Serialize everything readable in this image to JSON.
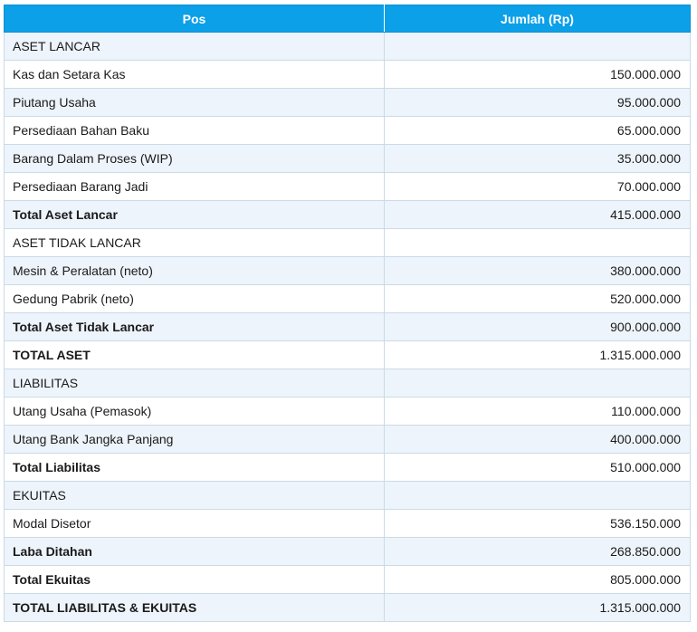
{
  "table": {
    "headers": [
      "Pos",
      "Jumlah (Rp)"
    ],
    "rows": [
      {
        "label": "ASET LANCAR",
        "value": "",
        "bold": false
      },
      {
        "label": "Kas dan Setara Kas",
        "value": "150.000.000",
        "bold": false
      },
      {
        "label": "Piutang Usaha",
        "value": "95.000.000",
        "bold": false
      },
      {
        "label": "Persediaan Bahan Baku",
        "value": "65.000.000",
        "bold": false
      },
      {
        "label": "Barang Dalam Proses (WIP)",
        "value": "35.000.000",
        "bold": false
      },
      {
        "label": "Persediaan Barang Jadi",
        "value": "70.000.000",
        "bold": false
      },
      {
        "label": "Total Aset Lancar",
        "value": "415.000.000",
        "bold": true
      },
      {
        "label": "ASET TIDAK LANCAR",
        "value": "",
        "bold": false
      },
      {
        "label": "Mesin & Peralatan (neto)",
        "value": "380.000.000",
        "bold": false
      },
      {
        "label": "Gedung Pabrik (neto)",
        "value": "520.000.000",
        "bold": false
      },
      {
        "label": "Total Aset Tidak Lancar",
        "value": "900.000.000",
        "bold": true
      },
      {
        "label": "TOTAL ASET",
        "value": "1.315.000.000",
        "bold": true
      },
      {
        "label": "LIABILITAS",
        "value": "",
        "bold": false
      },
      {
        "label": "Utang Usaha (Pemasok)",
        "value": "110.000.000",
        "bold": false
      },
      {
        "label": "Utang Bank Jangka Panjang",
        "value": "400.000.000",
        "bold": false
      },
      {
        "label": "Total Liabilitas",
        "value": "510.000.000",
        "bold": true
      },
      {
        "label": "EKUITAS",
        "value": "",
        "bold": false
      },
      {
        "label": "Modal Disetor",
        "value": "536.150.000",
        "bold": false
      },
      {
        "label": "Laba Ditahan",
        "value": "268.850.000",
        "bold": true
      },
      {
        "label": "Total Ekuitas",
        "value": "805.000.000",
        "bold": true
      },
      {
        "label": "TOTAL LIABILITAS & EKUITAS",
        "value": "1.315.000.000",
        "bold": true
      }
    ]
  },
  "colors": {
    "header_bg": "#0ba0e8",
    "header_text": "#ffffff",
    "alt_row_bg": "#eef4fb",
    "border": "#c9dbe8"
  }
}
